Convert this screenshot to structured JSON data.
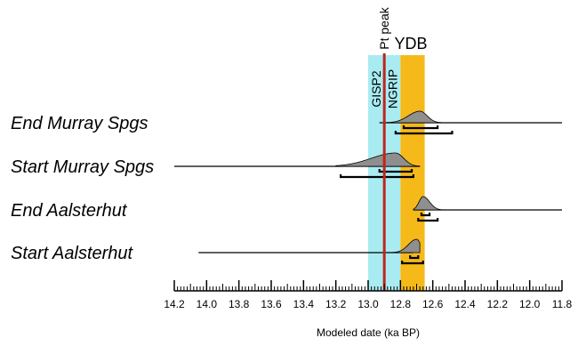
{
  "chart_data": {
    "type": "ridgeline",
    "xlabel": "Modeled date (ka BP)",
    "xlim": [
      14.2,
      11.8
    ],
    "x_reversed": true,
    "ticks": [
      "14.2",
      "14.0",
      "13.8",
      "13.6",
      "13.4",
      "13.2",
      "13.0",
      "12.8",
      "12.6",
      "12.4",
      "12.2",
      "12.0",
      "11.8"
    ],
    "bands": [
      {
        "label": "GISP2",
        "from": 13.0,
        "to": 12.9,
        "color": "#a8ecf2"
      },
      {
        "label": "NGRIP",
        "from": 12.9,
        "to": 12.8,
        "color": "#a8ecf2"
      },
      {
        "label": "YDB",
        "from": 12.8,
        "to": 12.65,
        "color": "#f6b91a"
      }
    ],
    "pt_peak": {
      "label": "Pt peak",
      "x": 12.9,
      "color": "#c0241c"
    },
    "rows": [
      {
        "name": "End Murray Spgs",
        "line_from": 12.93,
        "line_to": 11.8,
        "density_mode": 12.68,
        "density_sd_left": 0.07,
        "density_sd_right": 0.045,
        "density_left_cut": 12.93,
        "density_right_cut": 12.55,
        "range_68": [
          12.78,
          12.57
        ],
        "range_95": [
          12.83,
          12.48
        ]
      },
      {
        "name": "Start Murray Spgs",
        "line_from": 14.2,
        "line_to": 12.68,
        "density_mode": 12.83,
        "density_sd_left": 0.15,
        "density_sd_right": 0.05,
        "density_left_cut": 13.2,
        "density_right_cut": 12.68,
        "range_68": [
          12.93,
          12.73
        ],
        "range_95": [
          13.17,
          12.72
        ]
      },
      {
        "name": "End Aalsterhut",
        "line_from": 12.72,
        "line_to": 11.8,
        "density_mode": 12.66,
        "density_sd_left": 0.025,
        "density_sd_right": 0.04,
        "density_left_cut": 12.72,
        "density_right_cut": 12.55,
        "range_68": [
          12.67,
          12.62
        ],
        "range_95": [
          12.69,
          12.57
        ]
      },
      {
        "name": "Start Aalsterhut",
        "line_from": 14.05,
        "line_to": 12.72,
        "density_mode": 12.7,
        "density_sd_left": 0.05,
        "density_sd_right": 0.025,
        "density_left_cut": 12.86,
        "density_right_cut": 12.68,
        "range_68": [
          12.74,
          12.69
        ],
        "range_95": [
          12.79,
          12.66
        ]
      }
    ]
  }
}
